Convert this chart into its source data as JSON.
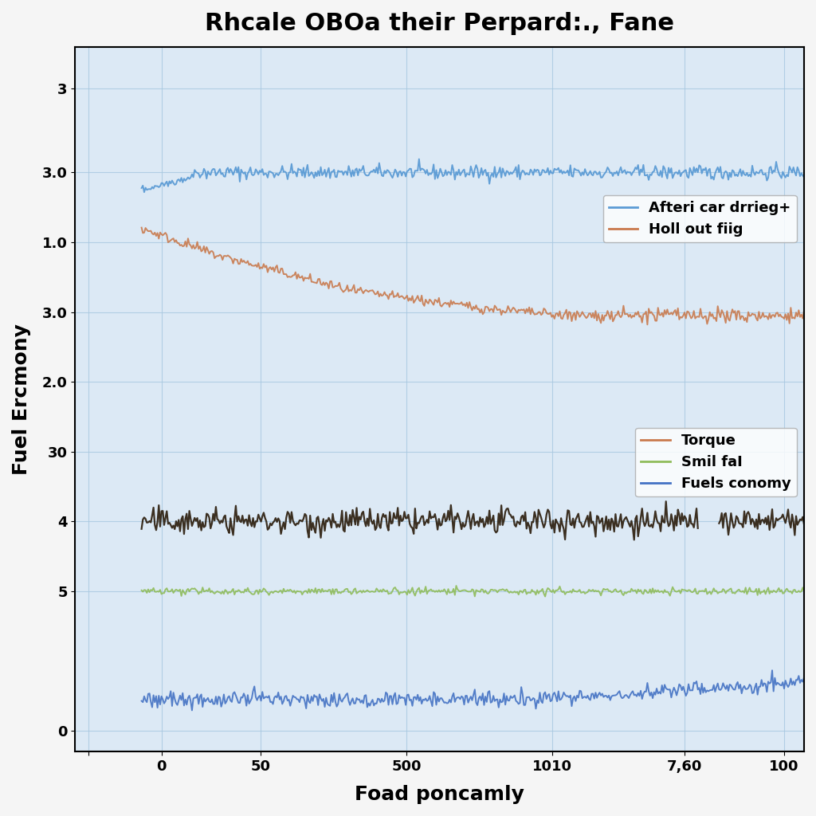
{
  "title": "Rhcale OBOa their Perpard:., Fane",
  "xlabel": "Foad poncamly",
  "ylabel": "Fuel Ercmony",
  "background_color": "#dce9f5",
  "legend1": [
    {
      "label": "Afteri car drrieg+",
      "color": "#5b9bd5"
    },
    {
      "label": "Holl out fiig",
      "color": "#c97a4e"
    }
  ],
  "legend2": [
    {
      "label": "Torque",
      "color": "#c97a4e"
    },
    {
      "label": "Smil faI",
      "color": "#8fbc5a"
    },
    {
      "label": "Fuels conomy",
      "color": "#4472c4"
    }
  ],
  "ytick_positions": [
    9.2,
    8.0,
    7.0,
    6.0,
    5.0,
    4.0,
    3.0,
    2.0,
    0.0
  ],
  "ytick_labels": [
    "3",
    "3.0",
    "1.0",
    "3.0",
    "2.0",
    "30",
    "4",
    "5",
    "0"
  ],
  "xtick_positions": [
    -8,
    3,
    18,
    40,
    62,
    82,
    97
  ],
  "xtick_labels": [
    "",
    "0",
    "50",
    "500",
    "1010",
    "7,60",
    "100"
  ],
  "line1_level": 8.0,
  "line2_start": 7.2,
  "line2_end": 5.95,
  "line3_level": 3.0,
  "line4_level": 2.0,
  "line5_level": 0.45,
  "xlim": [
    -10,
    100
  ],
  "ylim": [
    -0.3,
    9.8
  ],
  "title_fontsize": 22,
  "label_fontsize": 18,
  "tick_fontsize": 13
}
